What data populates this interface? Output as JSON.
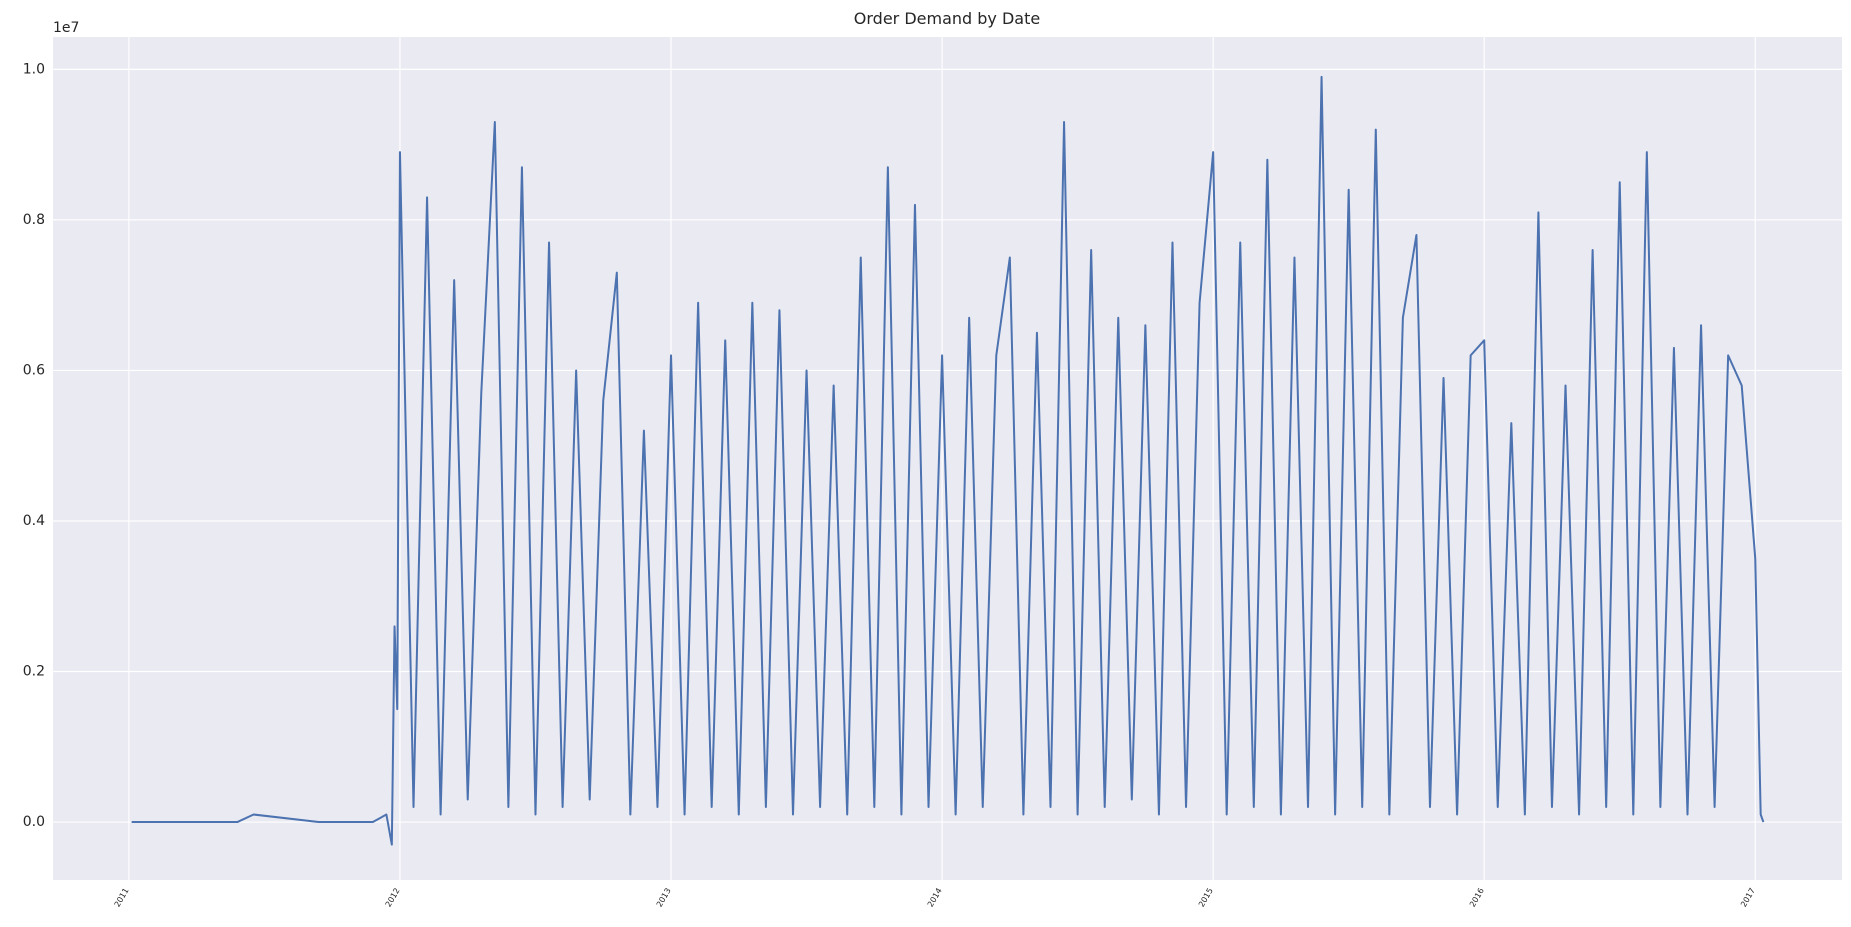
{
  "chart_data": {
    "type": "line",
    "title": "Order Demand by Date",
    "y_offset_label": "1e7",
    "x": [
      2011.01,
      2011.4,
      2011.46,
      2011.7,
      2011.8,
      2011.9,
      2011.95,
      2011.97,
      2011.98,
      2011.99,
      2012.0,
      2012.05,
      2012.1,
      2012.15,
      2012.2,
      2012.25,
      2012.3,
      2012.35,
      2012.4,
      2012.45,
      2012.5,
      2012.55,
      2012.6,
      2012.65,
      2012.7,
      2012.75,
      2012.8,
      2012.85,
      2012.9,
      2012.95,
      2013.0,
      2013.05,
      2013.1,
      2013.15,
      2013.2,
      2013.25,
      2013.3,
      2013.35,
      2013.4,
      2013.45,
      2013.5,
      2013.55,
      2013.6,
      2013.65,
      2013.7,
      2013.75,
      2013.8,
      2013.85,
      2013.9,
      2013.95,
      2014.0,
      2014.05,
      2014.1,
      2014.15,
      2014.2,
      2014.25,
      2014.3,
      2014.35,
      2014.4,
      2014.45,
      2014.5,
      2014.55,
      2014.6,
      2014.65,
      2014.7,
      2014.75,
      2014.8,
      2014.85,
      2014.9,
      2014.95,
      2015.0,
      2015.05,
      2015.1,
      2015.15,
      2015.2,
      2015.25,
      2015.3,
      2015.35,
      2015.4,
      2015.45,
      2015.5,
      2015.55,
      2015.6,
      2015.65,
      2015.7,
      2015.75,
      2015.8,
      2015.85,
      2015.9,
      2015.95,
      2016.0,
      2016.05,
      2016.1,
      2016.15,
      2016.2,
      2016.25,
      2016.3,
      2016.35,
      2016.4,
      2016.45,
      2016.5,
      2016.55,
      2016.6,
      2016.65,
      2016.7,
      2016.75,
      2016.8,
      2016.85,
      2016.9,
      2016.95,
      2017.0,
      2017.02,
      2017.03
    ],
    "series": [
      {
        "name": "Order_Demand",
        "color": "#4c72b0",
        "values": [
          0,
          0,
          0.01,
          0,
          0,
          0,
          0.01,
          -0.03,
          0.26,
          0.15,
          0.89,
          0.02,
          0.83,
          0.01,
          0.72,
          0.03,
          0.57,
          0.93,
          0.02,
          0.87,
          0.01,
          0.77,
          0.02,
          0.6,
          0.03,
          0.56,
          0.73,
          0.01,
          0.52,
          0.02,
          0.62,
          0.01,
          0.69,
          0.02,
          0.64,
          0.01,
          0.69,
          0.02,
          0.68,
          0.01,
          0.6,
          0.02,
          0.58,
          0.01,
          0.75,
          0.02,
          0.87,
          0.01,
          0.82,
          0.02,
          0.62,
          0.01,
          0.67,
          0.02,
          0.62,
          0.75,
          0.01,
          0.65,
          0.02,
          0.93,
          0.01,
          0.76,
          0.02,
          0.67,
          0.03,
          0.66,
          0.01,
          0.77,
          0.02,
          0.69,
          0.89,
          0.01,
          0.77,
          0.02,
          0.88,
          0.01,
          0.75,
          0.02,
          0.99,
          0.01,
          0.84,
          0.02,
          0.92,
          0.01,
          0.67,
          0.78,
          0.02,
          0.59,
          0.01,
          0.62,
          0.64,
          0.02,
          0.53,
          0.01,
          0.81,
          0.02,
          0.58,
          0.01,
          0.76,
          0.02,
          0.85,
          0.01,
          0.89,
          0.02,
          0.63,
          0.01,
          0.66,
          0.02,
          0.62,
          0.58,
          0.35,
          0.01,
          0
        ]
      }
    ],
    "xlim": [
      2010.72,
      2017.32
    ],
    "xticks": [
      2011,
      2012,
      2013,
      2014,
      2015,
      2016,
      2017
    ],
    "ylim": [
      -0.077,
      1.043
    ],
    "yticks": [
      {
        "value": 0,
        "label": "0.0"
      },
      {
        "value": 0.2,
        "label": "0.2"
      },
      {
        "value": 0.4,
        "label": "0.4"
      },
      {
        "value": 0.6,
        "label": "0.6"
      },
      {
        "value": 0.8,
        "label": "0.8"
      },
      {
        "value": 1.0,
        "label": "1.0"
      }
    ],
    "grid": true,
    "background": "#eaeaf2"
  }
}
